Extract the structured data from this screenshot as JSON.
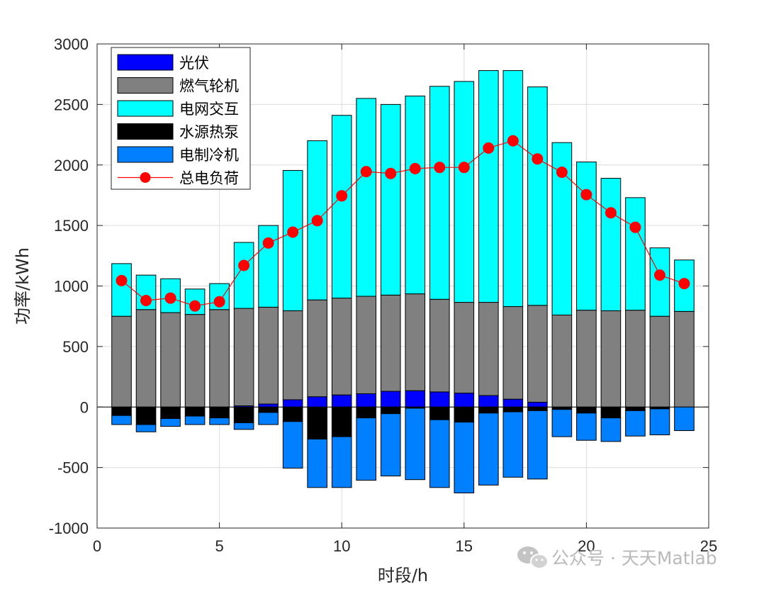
{
  "watermark": {
    "text": "公众号 · 天天Matlab",
    "icon": "wechat-icon"
  },
  "chart_data": {
    "type": "bar",
    "stacked": true,
    "xlabel": "时段/h",
    "ylabel": "功率/kWh",
    "xlim": [
      0,
      25
    ],
    "ylim": [
      -1000,
      3000
    ],
    "xticks": [
      0,
      5,
      10,
      15,
      20,
      25
    ],
    "yticks": [
      -1000,
      -500,
      0,
      500,
      1000,
      1500,
      2000,
      2500,
      3000
    ],
    "grid": true,
    "legend_position": "top-left",
    "x": [
      1,
      2,
      3,
      4,
      5,
      6,
      7,
      8,
      9,
      10,
      11,
      12,
      13,
      14,
      15,
      16,
      17,
      18,
      19,
      20,
      21,
      22,
      23,
      24
    ],
    "series": [
      {
        "name": "光伏",
        "kind": "bar",
        "color": "#0000ff",
        "values": [
          0,
          0,
          0,
          0,
          0,
          10,
          25,
          60,
          85,
          100,
          110,
          130,
          135,
          125,
          115,
          95,
          65,
          40,
          0,
          0,
          0,
          0,
          0,
          0
        ]
      },
      {
        "name": "燃气轮机",
        "kind": "bar",
        "color": "#808080",
        "values": [
          750,
          805,
          780,
          765,
          805,
          805,
          800,
          735,
          800,
          800,
          805,
          795,
          800,
          765,
          750,
          770,
          765,
          800,
          760,
          800,
          795,
          800,
          750,
          790
        ]
      },
      {
        "name": "电网交互",
        "kind": "bar",
        "color": "#00ffff",
        "values": [
          435,
          285,
          280,
          210,
          215,
          545,
          675,
          1160,
          1315,
          1510,
          1635,
          1575,
          1635,
          1760,
          1825,
          1915,
          1950,
          1805,
          1425,
          1225,
          1095,
          930,
          565,
          425
        ]
      },
      {
        "name": "水源热泵",
        "kind": "bar",
        "color": "#000000",
        "values": [
          -70,
          -145,
          -95,
          -75,
          -90,
          -130,
          -45,
          -120,
          -265,
          -245,
          -90,
          -55,
          -10,
          -105,
          -125,
          -50,
          -40,
          -30,
          -20,
          -50,
          -90,
          -30,
          -15,
          0
        ]
      },
      {
        "name": "电制冷机",
        "kind": "bar",
        "color": "#0080ff",
        "values": [
          -75,
          -60,
          -65,
          -70,
          -55,
          -55,
          -100,
          -385,
          -400,
          -420,
          -515,
          -515,
          -590,
          -560,
          -585,
          -595,
          -540,
          -565,
          -225,
          -225,
          -195,
          -210,
          -215,
          -195
        ]
      },
      {
        "name": "总电负荷",
        "kind": "line",
        "color": "#ff0000",
        "values": [
          1045,
          880,
          900,
          835,
          870,
          1170,
          1355,
          1445,
          1540,
          1745,
          1945,
          1930,
          1970,
          1980,
          1980,
          2140,
          2200,
          2050,
          1940,
          1755,
          1605,
          1485,
          1090,
          1020
        ]
      }
    ]
  }
}
